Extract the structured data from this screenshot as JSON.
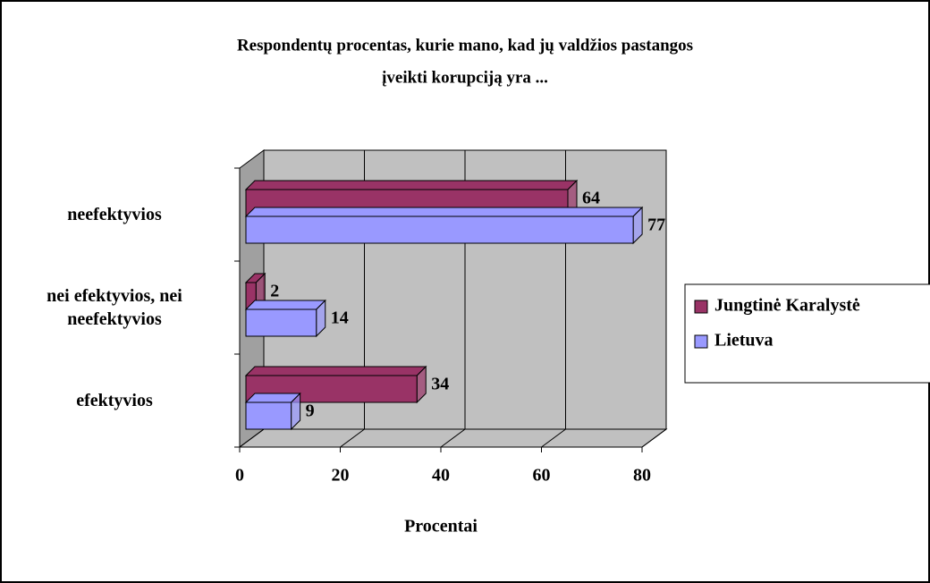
{
  "chart_data": {
    "type": "bar3d_horizontal",
    "title": [
      "Respondentų procentas, kurie mano, kad jų valdžios pastangos",
      "įveikti korupciją yra ..."
    ],
    "categories": [
      "efektyvios",
      "nei efektyvios, nei neefektyvios",
      "neefektyvios"
    ],
    "series": [
      {
        "name": "Jungtinė Karalystė",
        "color": "#993366",
        "values": [
          34,
          2,
          64
        ]
      },
      {
        "name": "Lietuva",
        "color": "#9999ff",
        "values": [
          9,
          14,
          77
        ]
      }
    ],
    "xlim": [
      0,
      80
    ],
    "xticks": [
      0,
      20,
      40,
      60,
      80
    ],
    "x_label": "Procentai",
    "grid": true,
    "legend": "right"
  }
}
